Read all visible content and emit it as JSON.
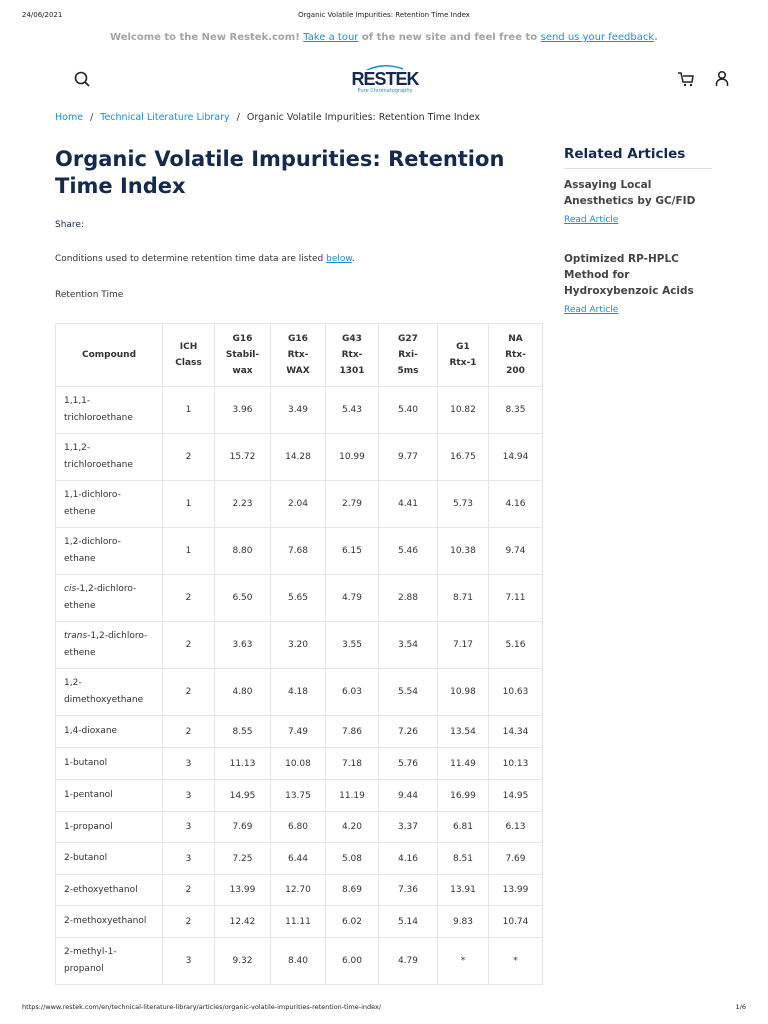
{
  "print_header": {
    "date": "24/06/2021",
    "title": "Organic Volatile Impurities: Retention Time Index"
  },
  "banner": {
    "text1": "Welcome to the New Restek.com!",
    "link1": "Take a tour",
    "text2": " of the new site and feel free to ",
    "link2": "send us your feedback",
    "text3": "."
  },
  "logo": {
    "word": "RESTEK",
    "tagline": "Pure Chromatography"
  },
  "icons": {
    "search": "search-icon",
    "cart": "cart-icon",
    "user": "user-icon"
  },
  "breadcrumb": [
    "Home",
    "Technical Literature Library",
    "Organic Volatile Impurities: Retention Time Index"
  ],
  "page": {
    "title": "Organic Volatile Impurities: Retention Time Index",
    "share": "Share:",
    "conditions_text": "Conditions used to determine retention time data are listed ",
    "conditions_link": "below",
    "conditions_end": ".",
    "section_label": "Retention Time"
  },
  "table": {
    "headers": [
      [
        "Compound"
      ],
      [
        "ICH",
        "Class"
      ],
      [
        "G16",
        "Stabil-",
        "wax"
      ],
      [
        "G16",
        "Rtx-",
        "WAX"
      ],
      [
        "G43",
        "Rtx-",
        "1301"
      ],
      [
        "G27",
        "Rxi-",
        "5ms"
      ],
      [
        "G1",
        "Rtx-1"
      ],
      [
        "NA",
        "Rtx-",
        "200"
      ]
    ],
    "rows": [
      {
        "prefix": "",
        "name": [
          "1,1,1-",
          "trichloroethane"
        ],
        "values": [
          "1",
          "3.96",
          "3.49",
          "5.43",
          "5.40",
          "10.82",
          "8.35"
        ]
      },
      {
        "prefix": "",
        "name": [
          "1,1,2-",
          "trichloroethane"
        ],
        "values": [
          "2",
          "15.72",
          "14.28",
          "10.99",
          "9.77",
          "16.75",
          "14.94"
        ]
      },
      {
        "prefix": "",
        "name": [
          "1,1-dichloro-",
          "ethene"
        ],
        "values": [
          "1",
          "2.23",
          "2.04",
          "2.79",
          "4.41",
          "5.73",
          "4.16"
        ]
      },
      {
        "prefix": "",
        "name": [
          "1,2-dichloro-",
          "ethane"
        ],
        "values": [
          "1",
          "8.80",
          "7.68",
          "6.15",
          "5.46",
          "10.38",
          "9.74"
        ]
      },
      {
        "prefix": "cis",
        "name": [
          "-1,2-dichloro-",
          "ethene"
        ],
        "values": [
          "2",
          "6.50",
          "5.65",
          "4.79",
          "2.88",
          "8.71",
          "7.11"
        ]
      },
      {
        "prefix": "trans",
        "name": [
          "-1,2-dichloro-",
          "ethene"
        ],
        "values": [
          "2",
          "3.63",
          "3.20",
          "3.55",
          "3.54",
          "7.17",
          "5.16"
        ]
      },
      {
        "prefix": "",
        "name": [
          "1,2-",
          "dimethoxyethane"
        ],
        "values": [
          "2",
          "4.80",
          "4.18",
          "6.03",
          "5.54",
          "10.98",
          "10.63"
        ]
      },
      {
        "prefix": "",
        "name": [
          "1,4-dioxane"
        ],
        "values": [
          "2",
          "8.55",
          "7.49",
          "7.86",
          "7.26",
          "13.54",
          "14.34"
        ]
      },
      {
        "prefix": "",
        "name": [
          "1-butanol"
        ],
        "values": [
          "3",
          "11.13",
          "10.08",
          "7.18",
          "5.76",
          "11.49",
          "10.13"
        ]
      },
      {
        "prefix": "",
        "name": [
          "1-pentanol"
        ],
        "values": [
          "3",
          "14.95",
          "13.75",
          "11.19",
          "9.44",
          "16.99",
          "14.95"
        ]
      },
      {
        "prefix": "",
        "name": [
          "1-propanol"
        ],
        "values": [
          "3",
          "7.69",
          "6.80",
          "4.20",
          "3.37",
          "6.81",
          "6.13"
        ]
      },
      {
        "prefix": "",
        "name": [
          "2-butanol"
        ],
        "values": [
          "3",
          "7.25",
          "6.44",
          "5.08",
          "4.16",
          "8.51",
          "7.69"
        ]
      },
      {
        "prefix": "",
        "name": [
          "2-ethoxyethanol"
        ],
        "values": [
          "2",
          "13.99",
          "12.70",
          "8.69",
          "7.36",
          "13.91",
          "13.99"
        ]
      },
      {
        "prefix": "",
        "name": [
          "2-methoxyethanol"
        ],
        "values": [
          "2",
          "12.42",
          "11.11",
          "6.02",
          "5.14",
          "9.83",
          "10.74"
        ]
      },
      {
        "prefix": "",
        "name": [
          "2-methyl-1-",
          "propanol"
        ],
        "values": [
          "3",
          "9.32",
          "8.40",
          "6.00",
          "4.79",
          "*",
          "*"
        ]
      }
    ]
  },
  "sidebar": {
    "heading": "Related Articles",
    "articles": [
      {
        "title": "Assaying Local Anesthetics by GC/FID",
        "link": "Read Article"
      },
      {
        "title": "Optimized RP-HPLC Method for Hydroxybenzoic Acids",
        "link": "Read Article"
      }
    ]
  },
  "print_footer": {
    "url": "https://www.restek.com/en/technical-literature-library/articles/organic-volatile-impurities-retention-time-index/",
    "page": "1/6"
  },
  "colors": {
    "navy": "#15294f",
    "link": "#1a8fd0"
  }
}
